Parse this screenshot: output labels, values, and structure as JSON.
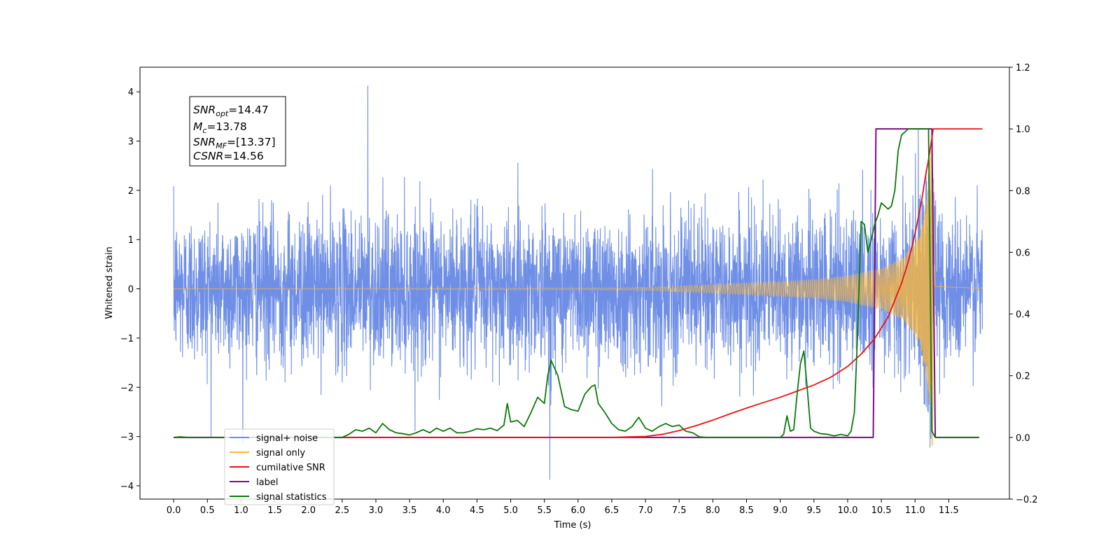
{
  "chart_data": {
    "type": "line",
    "xlabel": "Time (s)",
    "ylabel_left": "Whitened strain",
    "ylabel_right": "",
    "xlim": [
      -0.5,
      12.4
    ],
    "ylim_left": [
      -4.27,
      4.5
    ],
    "ylim_right": [
      -0.2,
      1.2
    ],
    "x_ticks": [
      0.0,
      0.5,
      1.0,
      1.5,
      2.0,
      2.5,
      3.0,
      3.5,
      4.0,
      4.5,
      5.0,
      5.5,
      6.0,
      6.5,
      7.0,
      7.5,
      8.0,
      8.5,
      9.0,
      9.5,
      10.0,
      10.5,
      11.0,
      11.5
    ],
    "x_tick_labels": [
      "0.0",
      "0.5",
      "1.0",
      "1.5",
      "2.0",
      "2.5",
      "3.0",
      "3.5",
      "4.0",
      "4.5",
      "5.0",
      "5.5",
      "6.0",
      "6.5",
      "7.0",
      "7.5",
      "8.0",
      "8.5",
      "9.0",
      "9.5",
      "10.0",
      "10.5",
      "11.0",
      "11.5"
    ],
    "y_left_ticks": [
      4,
      3,
      2,
      1,
      0,
      -1,
      -2,
      -3,
      -4
    ],
    "y_left_tick_labels": [
      "4",
      "3",
      "2",
      "1",
      "0",
      "−1",
      "−2",
      "−3",
      "−4"
    ],
    "y_right_ticks": [
      1.2,
      1.0,
      0.8,
      0.6,
      0.4,
      0.2,
      0.0,
      -0.2
    ],
    "y_right_tick_labels": [
      "1.2",
      "1.0",
      "0.8",
      "0.6",
      "0.4",
      "0.2",
      "0.0",
      "−0.2"
    ],
    "grid": false,
    "legend_position": "lower-left",
    "colors": {
      "noise": "#6f8fe6",
      "signal": "#ffb833",
      "csnr": "#ee1111",
      "label": "#7b0d8a",
      "stats": "#0a7a0a"
    },
    "annotation": {
      "snr_opt": {
        "main": "SNR",
        "sub": "opt",
        "value": "=14.47"
      },
      "mc": {
        "main": "M",
        "sub": "c",
        "value": "=13.78"
      },
      "snr_mf": {
        "main": "SNR",
        "sub": "MF",
        "value": "=[13.37]"
      },
      "csnr": {
        "main": "CSNR",
        "value": "=14.56"
      }
    },
    "legend": [
      {
        "label": "signal+ noise",
        "color": "#6f8fe6"
      },
      {
        "label": "signal only",
        "color": "#ffb833"
      },
      {
        "label": "cumilative SNR",
        "color": "#ee1111"
      },
      {
        "label": "label",
        "color": "#7b0d8a"
      },
      {
        "label": "signal statistics",
        "color": "#0a7a0a"
      }
    ],
    "series": [
      {
        "name": "signal+ noise",
        "axis": "left",
        "x_range": [
          0.0,
          12.0
        ],
        "noise_std": 0.75,
        "peak_ymax": 4.12,
        "peak_ymin": -3.87,
        "note_series": "dense whitened strain, spans roughly -2.5 to 2.5"
      },
      {
        "name": "signal only",
        "axis": "left",
        "x_range": [
          0.0,
          12.0
        ],
        "chirp_end_time": 11.25,
        "peak_ymax": 3.25,
        "peak_ymin": -3.18,
        "envelope": [
          [
            0.0,
            0.005
          ],
          [
            6.0,
            0.02
          ],
          [
            7.0,
            0.03
          ],
          [
            7.5,
            0.06
          ],
          [
            8.0,
            0.09
          ],
          [
            8.5,
            0.12
          ],
          [
            9.0,
            0.15
          ],
          [
            9.5,
            0.19
          ],
          [
            10.0,
            0.27
          ],
          [
            10.5,
            0.42
          ],
          [
            10.8,
            0.62
          ],
          [
            11.0,
            0.95
          ],
          [
            11.1,
            1.3
          ],
          [
            11.2,
            2.1
          ],
          [
            11.25,
            3.2
          ],
          [
            11.3,
            0.05
          ],
          [
            12.0,
            0.01
          ]
        ]
      },
      {
        "name": "cumilative SNR",
        "axis": "right",
        "x": [
          0.0,
          6.5,
          7.0,
          7.25,
          7.5,
          7.75,
          8.0,
          8.25,
          8.5,
          8.75,
          9.0,
          9.25,
          9.5,
          9.75,
          10.0,
          10.2,
          10.4,
          10.6,
          10.8,
          10.9,
          11.0,
          11.1,
          11.15,
          11.2,
          11.25,
          11.27,
          12.0
        ],
        "values": [
          0.0,
          0.0,
          0.003,
          0.01,
          0.022,
          0.038,
          0.056,
          0.076,
          0.095,
          0.113,
          0.13,
          0.15,
          0.17,
          0.195,
          0.23,
          0.27,
          0.32,
          0.39,
          0.5,
          0.57,
          0.66,
          0.77,
          0.84,
          0.9,
          0.97,
          1.0,
          1.0
        ]
      },
      {
        "name": "label",
        "axis": "right",
        "x": [
          0.0,
          10.38,
          10.42,
          11.25,
          11.3,
          11.95
        ],
        "values": [
          0.0,
          0.0,
          1.0,
          1.0,
          0.0,
          0.0
        ]
      },
      {
        "name": "signal statistics",
        "axis": "right",
        "x": [
          0.0,
          0.1,
          0.2,
          2.5,
          2.6,
          2.7,
          2.8,
          2.9,
          3.0,
          3.1,
          3.2,
          3.3,
          3.4,
          3.5,
          3.6,
          3.7,
          3.8,
          3.9,
          4.0,
          4.1,
          4.2,
          4.3,
          4.4,
          4.5,
          4.6,
          4.7,
          4.8,
          4.9,
          4.95,
          5.0,
          5.1,
          5.2,
          5.3,
          5.4,
          5.5,
          5.55,
          5.6,
          5.7,
          5.8,
          5.9,
          6.0,
          6.1,
          6.2,
          6.25,
          6.3,
          6.4,
          6.5,
          6.6,
          6.7,
          6.8,
          6.9,
          7.0,
          7.1,
          7.2,
          7.3,
          7.4,
          7.5,
          7.6,
          7.7,
          7.8,
          7.9,
          8.0,
          8.5,
          9.0,
          9.05,
          9.1,
          9.15,
          9.2,
          9.25,
          9.3,
          9.35,
          9.4,
          9.45,
          9.5,
          9.6,
          9.7,
          9.8,
          9.9,
          10.0,
          10.05,
          10.1,
          10.15,
          10.2,
          10.25,
          10.3,
          10.35,
          10.4,
          10.45,
          10.5,
          10.55,
          10.6,
          10.65,
          10.7,
          10.75,
          10.8,
          10.9,
          11.0,
          11.1,
          11.15,
          11.2,
          11.25,
          11.3,
          11.4,
          11.6,
          11.8,
          11.95
        ],
        "values": [
          0.0,
          0.002,
          0.0,
          0.0,
          0.01,
          0.025,
          0.02,
          0.03,
          0.015,
          0.045,
          0.025,
          0.015,
          0.012,
          0.008,
          0.015,
          0.025,
          0.015,
          0.03,
          0.02,
          0.03,
          0.015,
          0.015,
          0.02,
          0.028,
          0.025,
          0.03,
          0.022,
          0.04,
          0.11,
          0.05,
          0.055,
          0.035,
          0.08,
          0.13,
          0.11,
          0.2,
          0.25,
          0.2,
          0.1,
          0.09,
          0.085,
          0.14,
          0.165,
          0.17,
          0.11,
          0.08,
          0.045,
          0.025,
          0.02,
          0.035,
          0.065,
          0.03,
          0.02,
          0.035,
          0.045,
          0.035,
          0.04,
          0.02,
          0.015,
          0.002,
          0.0,
          0.0,
          0.0,
          0.0,
          0.01,
          0.07,
          0.02,
          0.025,
          0.14,
          0.24,
          0.28,
          0.16,
          0.03,
          0.02,
          0.012,
          0.01,
          0.005,
          0.01,
          0.005,
          0.02,
          0.08,
          0.35,
          0.7,
          0.69,
          0.6,
          0.64,
          0.69,
          0.72,
          0.76,
          0.75,
          0.74,
          0.75,
          0.8,
          0.93,
          0.98,
          1.0,
          1.0,
          1.0,
          1.0,
          1.0,
          0.02,
          0.0,
          0.0,
          0.0,
          0.0,
          0.0
        ]
      }
    ]
  }
}
